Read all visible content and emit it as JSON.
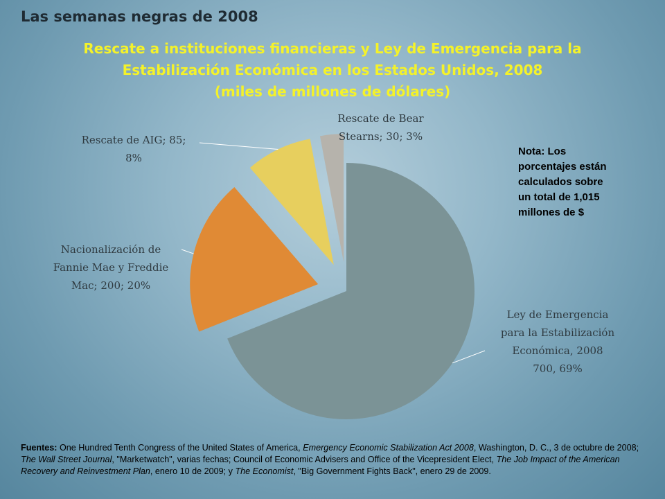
{
  "slide_title": "Las semanas negras de 2008",
  "chart_data": {
    "type": "pie",
    "title_lines": [
      "Rescate a instituciones financieras y Ley de Emergencia para la",
      "Estabilización Económica en los Estados Unidos, 2008",
      "(miles de millones de dólares)"
    ],
    "slices": [
      {
        "name": "Ley de Emergencia para la Estabilización Económica, 2008",
        "value": 700,
        "percent": 69,
        "color": "#7b9396",
        "label_lines": [
          "Ley de Emergencia",
          "para la Estabilización",
          "Económica, 2008",
          "700, 69%"
        ]
      },
      {
        "name": "Nacionalización de Fannie Mae y Freddie Mac",
        "value": 200,
        "percent": 20,
        "color": "#e08a35",
        "label_lines": [
          "Nacionalización de",
          "Fannie Mae y Freddie",
          "Mac; 200; 20%"
        ]
      },
      {
        "name": "Rescate de AIG",
        "value": 85,
        "percent": 8,
        "color": "#e7cf5e",
        "label_lines": [
          "Rescate de AIG; 85;",
          "8%"
        ]
      },
      {
        "name": "Rescate de Bear Stearns",
        "value": 30,
        "percent": 3,
        "color": "#b6b3ac",
        "label_lines": [
          "Rescate de Bear",
          "Stearns; 30; 3%"
        ]
      }
    ],
    "legend": "none"
  },
  "note_lines": [
    "Nota: Los",
    "porcentajes están",
    "calculados sobre",
    "un total de 1,015",
    "millones de $"
  ],
  "sources": {
    "label": "Fuentes:",
    "parts": [
      {
        "text": " One Hundred Tenth Congress of the United States of America, ",
        "italic": false
      },
      {
        "text": "Emergency Economic Stabilization Act 2008",
        "italic": true
      },
      {
        "text": ", Washington, D. C., 3 de octubre de 2008; ",
        "italic": false
      },
      {
        "text": "The Wall Street Journal",
        "italic": true
      },
      {
        "text": ", \"Marketwatch\", varias fechas; Council of Economic Advisers and Office of the Vicepresident Elect, ",
        "italic": false
      },
      {
        "text": "The Job Impact of the American Recovery and Reinvestment Plan",
        "italic": true
      },
      {
        "text": ", enero 10 de 2009; y ",
        "italic": false
      },
      {
        "text": "The Economist",
        "italic": true
      },
      {
        "text": ", \"Big Government Fights Back\", enero 29 de 2009.",
        "italic": false
      }
    ]
  }
}
